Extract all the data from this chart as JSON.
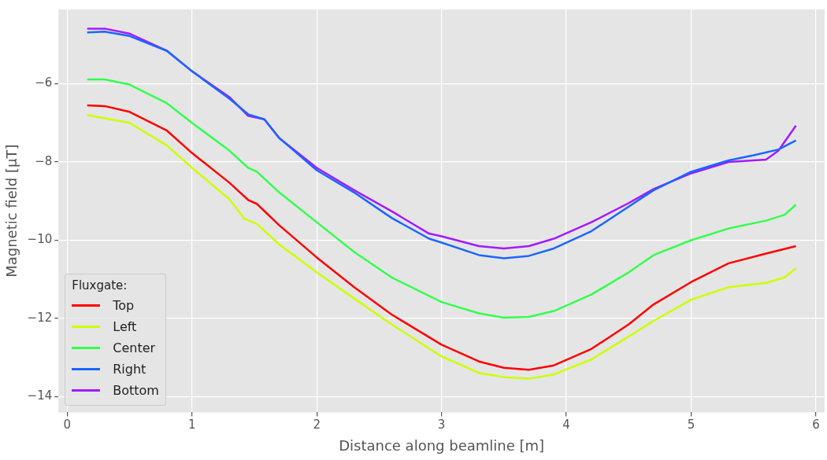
{
  "chart_data": {
    "type": "line",
    "xlabel": "Distance along beamline [m]",
    "ylabel": "Magnetic field [µT]",
    "legend_title": "Fluxgate:",
    "legend": "bottom left",
    "grid": true,
    "line_style": "solid",
    "xlim": [
      -0.07,
      6.07
    ],
    "ylim": [
      -14.4,
      -4.1
    ],
    "xticks": [
      0,
      1,
      2,
      3,
      4,
      5,
      6
    ],
    "yticks": [
      -14,
      -12,
      -10,
      -8,
      -6
    ],
    "series": [
      {
        "name": "Top",
        "color": "#ff0000",
        "x": [
          0.16,
          0.3,
          0.5,
          0.8,
          1.0,
          1.3,
          1.45,
          1.52,
          1.7,
          2.0,
          2.3,
          2.6,
          3.0,
          3.3,
          3.5,
          3.7,
          3.9,
          4.2,
          4.5,
          4.7,
          5.0,
          5.3,
          5.6,
          5.84
        ],
        "values": [
          -6.55,
          -6.57,
          -6.72,
          -7.2,
          -7.77,
          -8.53,
          -8.97,
          -9.07,
          -9.62,
          -10.44,
          -11.2,
          -11.9,
          -12.67,
          -13.1,
          -13.26,
          -13.31,
          -13.2,
          -12.78,
          -12.15,
          -11.64,
          -11.07,
          -10.59,
          -10.34,
          -10.15
        ]
      },
      {
        "name": "Left",
        "color": "#ccff00",
        "x": [
          0.16,
          0.5,
          0.8,
          1.0,
          1.3,
          1.42,
          1.52,
          1.7,
          2.0,
          2.3,
          2.6,
          3.0,
          3.3,
          3.5,
          3.7,
          3.9,
          4.2,
          4.5,
          4.7,
          5.0,
          5.3,
          5.6,
          5.75,
          5.84
        ],
        "values": [
          -6.8,
          -7.0,
          -7.58,
          -8.15,
          -8.95,
          -9.45,
          -9.58,
          -10.11,
          -10.82,
          -11.49,
          -12.15,
          -12.97,
          -13.39,
          -13.5,
          -13.54,
          -13.43,
          -13.05,
          -12.46,
          -12.06,
          -11.52,
          -11.2,
          -11.09,
          -10.95,
          -10.72
        ]
      },
      {
        "name": "Center",
        "color": "#33ff4d",
        "x": [
          0.16,
          0.3,
          0.5,
          0.8,
          1.0,
          1.3,
          1.45,
          1.52,
          1.7,
          2.0,
          2.3,
          2.6,
          3.0,
          3.3,
          3.5,
          3.7,
          3.9,
          4.2,
          4.5,
          4.7,
          5.0,
          5.3,
          5.6,
          5.75,
          5.84
        ],
        "values": [
          -5.89,
          -5.89,
          -6.02,
          -6.5,
          -7.0,
          -7.71,
          -8.15,
          -8.25,
          -8.78,
          -9.54,
          -10.3,
          -10.95,
          -11.58,
          -11.87,
          -11.98,
          -11.96,
          -11.81,
          -11.39,
          -10.82,
          -10.38,
          -10.0,
          -9.7,
          -9.5,
          -9.35,
          -9.09
        ]
      },
      {
        "name": "Right",
        "color": "#1a66ff",
        "x": [
          0.16,
          0.3,
          0.5,
          0.8,
          1.0,
          1.3,
          1.45,
          1.58,
          1.7,
          2.0,
          2.3,
          2.6,
          2.9,
          3.0,
          3.3,
          3.5,
          3.7,
          3.9,
          4.2,
          4.5,
          4.7,
          5.0,
          5.3,
          5.5,
          5.7,
          5.84
        ],
        "values": [
          -4.69,
          -4.67,
          -4.78,
          -5.16,
          -5.68,
          -6.38,
          -6.78,
          -6.91,
          -7.39,
          -8.21,
          -8.78,
          -9.43,
          -9.96,
          -10.06,
          -10.38,
          -10.46,
          -10.4,
          -10.21,
          -9.77,
          -9.14,
          -8.72,
          -8.25,
          -7.96,
          -7.83,
          -7.68,
          -7.45
        ]
      },
      {
        "name": "Bottom",
        "color": "#a31aff",
        "x": [
          0.16,
          0.3,
          0.5,
          0.8,
          1.0,
          1.3,
          1.45,
          1.58,
          1.7,
          2.0,
          2.3,
          2.6,
          2.9,
          3.0,
          3.3,
          3.5,
          3.7,
          3.9,
          4.2,
          4.5,
          4.7,
          5.0,
          5.3,
          5.6,
          5.7,
          5.84
        ],
        "values": [
          -4.59,
          -4.59,
          -4.72,
          -5.16,
          -5.68,
          -6.34,
          -6.82,
          -6.91,
          -7.39,
          -8.15,
          -8.72,
          -9.26,
          -9.83,
          -9.9,
          -10.15,
          -10.21,
          -10.15,
          -9.96,
          -9.54,
          -9.05,
          -8.69,
          -8.29,
          -8.0,
          -7.94,
          -7.71,
          -7.07
        ]
      }
    ]
  }
}
